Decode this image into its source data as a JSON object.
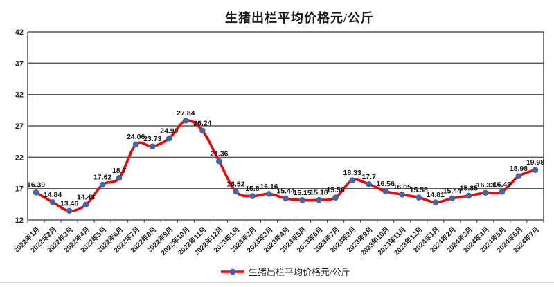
{
  "title": "生猪出栏平均价格元/公斤",
  "legend": {
    "label": "生猪出栏平均价格元/公斤"
  },
  "colors": {
    "line": "#EE0707",
    "marker": "#3C68A8",
    "gridline": "#595959",
    "gridline_emphasis": "#808080",
    "axis": "#404040",
    "text": "#1a1a1a"
  },
  "chart_data": {
    "type": "line",
    "title": "生猪出栏平均价格元/公斤",
    "series_name": "生猪出栏平均价格元/公斤",
    "categories": [
      "2022年1月",
      "2022年2月",
      "2022年3月",
      "2022年4月",
      "2022年5月",
      "2022年6月",
      "2022年7月",
      "2022年8月",
      "2022年9月",
      "2022年10月",
      "2022年11月",
      "2022年12月",
      "2023年1月",
      "2023年2月",
      "2023年3月",
      "2023年4月",
      "2023年5月",
      "2023年6月",
      "2023年7月",
      "2023年8月",
      "2023年9月",
      "2023年10月",
      "2023年11月",
      "2023年12月",
      "2024年1月",
      "2024年2月",
      "2024年3月",
      "2024年4月",
      "2024年5月",
      "2024年6月",
      "2024年7月"
    ],
    "values": [
      16.39,
      14.84,
      13.46,
      14.43,
      17.62,
      18.7,
      24.06,
      23.73,
      24.99,
      27.84,
      26.24,
      21.36,
      16.52,
      15.8,
      16.16,
      15.44,
      15.15,
      15.18,
      15.56,
      18.33,
      17.7,
      16.56,
      16.05,
      15.58,
      14.81,
      15.44,
      15.85,
      16.33,
      16.49,
      18.98,
      19.98
    ],
    "ylabel": "",
    "xlabel": "",
    "ylim": [
      12,
      42
    ],
    "yticks": [
      12,
      17,
      22,
      27,
      32,
      37,
      42
    ],
    "emphasized_gridlines": [
      42
    ],
    "grid": true,
    "smooth": true,
    "data_labels": true,
    "marker": "circle",
    "legend_position": "bottom"
  }
}
